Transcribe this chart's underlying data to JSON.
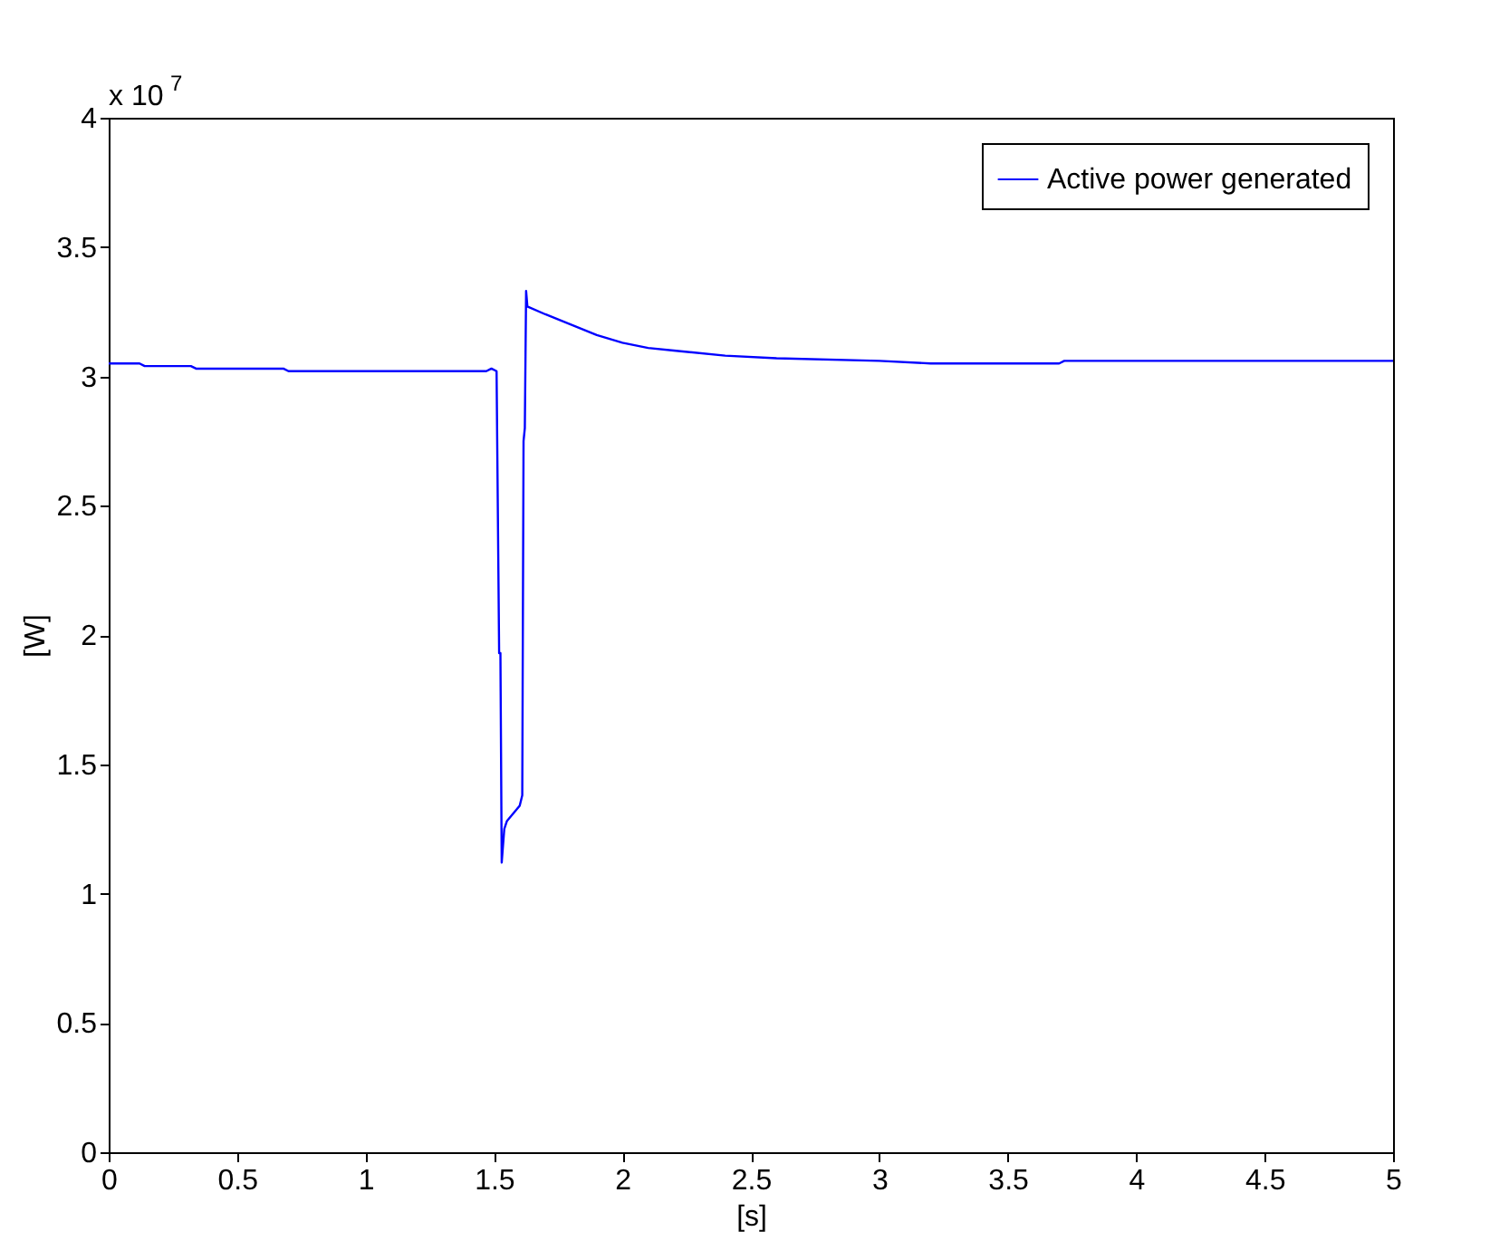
{
  "chart_data": {
    "type": "line",
    "xlabel": "[s]",
    "ylabel": "[W]",
    "annotations": [
      "x 10$^{7}$"
    ],
    "xlim": [
      0,
      5
    ],
    "xticks": [
      0,
      0.5,
      1,
      1.5,
      2,
      2.5,
      3,
      3.5,
      4,
      4.5,
      5
    ],
    "ylim": [
      0,
      4
    ],
    "yticks": [
      0,
      0.5,
      1,
      1.5,
      2,
      2.5,
      3,
      3.5,
      4
    ],
    "grid": false,
    "legend": "top right",
    "marker": "none",
    "line_style": "solid",
    "series": [
      {
        "name": "Active power generated",
        "color": "#0000ff",
        "x": [
          0,
          0.12,
          0.14,
          0.32,
          0.34,
          0.68,
          0.7,
          1.47,
          1.49,
          1.51,
          1.52,
          1.525,
          1.53,
          1.54,
          1.55,
          1.6,
          1.61,
          1.615,
          1.62,
          1.625,
          1.63,
          1.7,
          1.8,
          1.9,
          2.0,
          2.1,
          2.2,
          2.4,
          2.6,
          3.0,
          3.2,
          3.7,
          3.72,
          5
        ],
        "values": [
          3.05,
          3.05,
          3.04,
          3.04,
          3.03,
          3.03,
          3.02,
          3.02,
          3.03,
          3.02,
          1.93,
          1.93,
          1.12,
          1.25,
          1.28,
          1.34,
          1.38,
          2.75,
          2.8,
          3.33,
          3.27,
          3.24,
          3.2,
          3.16,
          3.13,
          3.11,
          3.1,
          3.08,
          3.07,
          3.06,
          3.05,
          3.05,
          3.06,
          3.06
        ]
      }
    ]
  }
}
